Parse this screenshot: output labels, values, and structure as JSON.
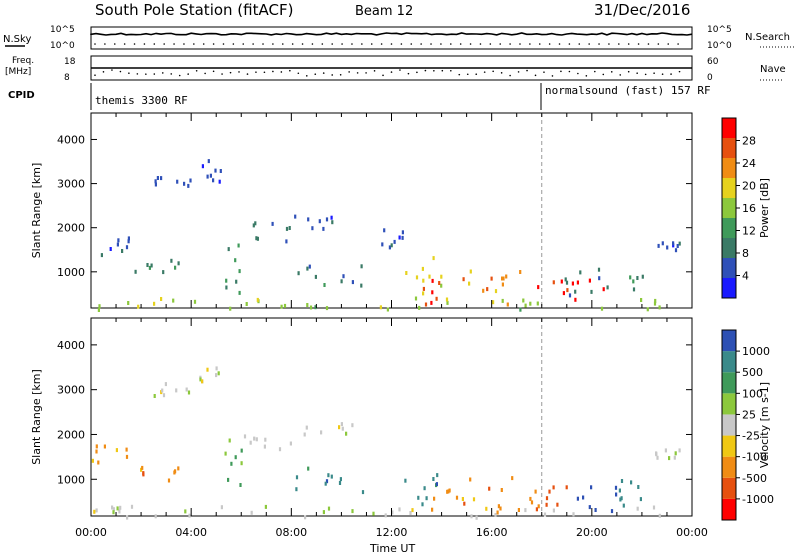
{
  "header": {
    "title": "South Pole Station (fitACF)",
    "beam": "Beam 12",
    "date": "31/Dec/2016"
  },
  "top_panels": {
    "nsky_label": "N.Sky",
    "nsky_ticks": [
      "10^5",
      "10^0"
    ],
    "nsearch_label": "N.Search",
    "nsearch_ticks": [
      "10^5",
      "10^0"
    ],
    "freq_label": "Freq.",
    "freq_unit": "[MHz]",
    "freq_ticks": [
      "18",
      "8"
    ],
    "nave_label": "Nave",
    "nave_ticks": [
      "60",
      "0"
    ],
    "cpid_label": "CPID",
    "cpid_left": "themis 3300 RF",
    "cpid_right": "normalsound (fast) 157 RF"
  },
  "chart_data": [
    {
      "type": "heatmap",
      "name": "power",
      "ylabel": "Slant Range [km]",
      "xlabel": "Time UT",
      "ylim": [
        180,
        4600
      ],
      "yticks": [
        "1000",
        "2000",
        "3000",
        "4000"
      ],
      "colorbar_label": "Power [dB]",
      "colorbar_ticks": [
        "4",
        "8",
        "12",
        "16",
        "20",
        "24",
        "28"
      ],
      "colors": [
        "#1a1aff",
        "#2f50b8",
        "#3a7a66",
        "#3f9a5a",
        "#8cc83c",
        "#e6d21e",
        "#f08c14",
        "#e6500f",
        "#ff0000"
      ],
      "blobs": [
        {
          "t0": 4.3,
          "t1": 5.2,
          "r0": 2900,
          "r1": 3600,
          "c": 1
        },
        {
          "t0": 2.5,
          "t1": 4.0,
          "r0": 2900,
          "r1": 3200,
          "c": 1
        },
        {
          "t0": 6.0,
          "t1": 8.3,
          "r0": 1600,
          "r1": 2200,
          "c": 2
        },
        {
          "t0": 8.0,
          "t1": 10.5,
          "r0": 2000,
          "r1": 2300,
          "c": 1
        },
        {
          "t0": 0.0,
          "t1": 1.5,
          "r0": 1400,
          "r1": 1900,
          "c": 1
        },
        {
          "t0": 1.5,
          "t1": 3.5,
          "r0": 1000,
          "r1": 1300,
          "c": 2
        },
        {
          "t0": 5.3,
          "t1": 6.0,
          "r0": 400,
          "r1": 2000,
          "c": 3
        },
        {
          "t0": 8.0,
          "t1": 11.0,
          "r0": 700,
          "r1": 1300,
          "c": 2
        },
        {
          "t0": 12.5,
          "t1": 14.0,
          "r0": 400,
          "r1": 1500,
          "c": 5
        },
        {
          "t0": 13.0,
          "t1": 15.0,
          "r0": 300,
          "r1": 900,
          "c": 7
        },
        {
          "t0": 15.0,
          "t1": 18.0,
          "r0": 300,
          "r1": 1100,
          "c": 6
        },
        {
          "t0": 17.5,
          "t1": 20.5,
          "r0": 300,
          "r1": 900,
          "c": 8
        },
        {
          "t0": 18.5,
          "t1": 22.0,
          "r0": 400,
          "r1": 1100,
          "c": 2
        },
        {
          "t0": 22.5,
          "t1": 23.5,
          "r0": 1500,
          "r1": 1700,
          "c": 1
        },
        {
          "t0": 11.5,
          "t1": 12.5,
          "r0": 1300,
          "r1": 2000,
          "c": 1
        },
        {
          "t0": 0.0,
          "t1": 24.0,
          "r0": 180,
          "r1": 450,
          "c": 4
        }
      ]
    },
    {
      "type": "heatmap",
      "name": "velocity",
      "ylabel": "Slant Range [km]",
      "xlabel": "Time UT",
      "ylim": [
        180,
        4600
      ],
      "yticks": [
        "1000",
        "2000",
        "3000",
        "4000"
      ],
      "colorbar_label": "Velocity [m s-1]",
      "colorbar_ticks": [
        "1000",
        "500",
        "100",
        "25",
        "-25",
        "-100",
        "-500",
        "-1000"
      ],
      "colors": [
        "#2d50b4",
        "#3a8a8a",
        "#3f9a5a",
        "#8cc83c",
        "#c8c8c8",
        "#f0c814",
        "#f08c14",
        "#e6500f",
        "#ff0000"
      ],
      "blobs": [
        {
          "t0": 4.3,
          "t1": 5.2,
          "r0": 2900,
          "r1": 3600,
          "c": 4
        },
        {
          "t0": 2.5,
          "t1": 4.0,
          "r0": 2900,
          "r1": 3200,
          "c": 4
        },
        {
          "t0": 6.0,
          "t1": 8.3,
          "r0": 1600,
          "r1": 2200,
          "c": 4
        },
        {
          "t0": 8.0,
          "t1": 10.5,
          "r0": 2000,
          "r1": 2300,
          "c": 4
        },
        {
          "t0": 0.0,
          "t1": 1.5,
          "r0": 1400,
          "r1": 1900,
          "c": 6
        },
        {
          "t0": 1.5,
          "t1": 3.5,
          "r0": 1000,
          "r1": 1300,
          "c": 6
        },
        {
          "t0": 5.3,
          "t1": 6.0,
          "r0": 400,
          "r1": 2000,
          "c": 2
        },
        {
          "t0": 8.0,
          "t1": 11.0,
          "r0": 700,
          "r1": 1300,
          "c": 1
        },
        {
          "t0": 12.5,
          "t1": 14.0,
          "r0": 400,
          "r1": 1500,
          "c": 1
        },
        {
          "t0": 13.0,
          "t1": 15.0,
          "r0": 300,
          "r1": 900,
          "c": 6
        },
        {
          "t0": 15.0,
          "t1": 18.0,
          "r0": 300,
          "r1": 1100,
          "c": 6
        },
        {
          "t0": 17.5,
          "t1": 19.0,
          "r0": 300,
          "r1": 900,
          "c": 7
        },
        {
          "t0": 19.0,
          "t1": 21.0,
          "r0": 300,
          "r1": 1000,
          "c": 0
        },
        {
          "t0": 21.0,
          "t1": 22.0,
          "r0": 400,
          "r1": 1100,
          "c": 1
        },
        {
          "t0": 22.5,
          "t1": 23.5,
          "r0": 1500,
          "r1": 1700,
          "c": 4
        },
        {
          "t0": 0.0,
          "t1": 24.0,
          "r0": 180,
          "r1": 450,
          "c": 4
        }
      ]
    }
  ],
  "time_axis": {
    "xlabel": "Time UT",
    "ticks": [
      "00:00",
      "04:00",
      "08:00",
      "12:00",
      "16:00",
      "20:00",
      "00:00"
    ]
  }
}
